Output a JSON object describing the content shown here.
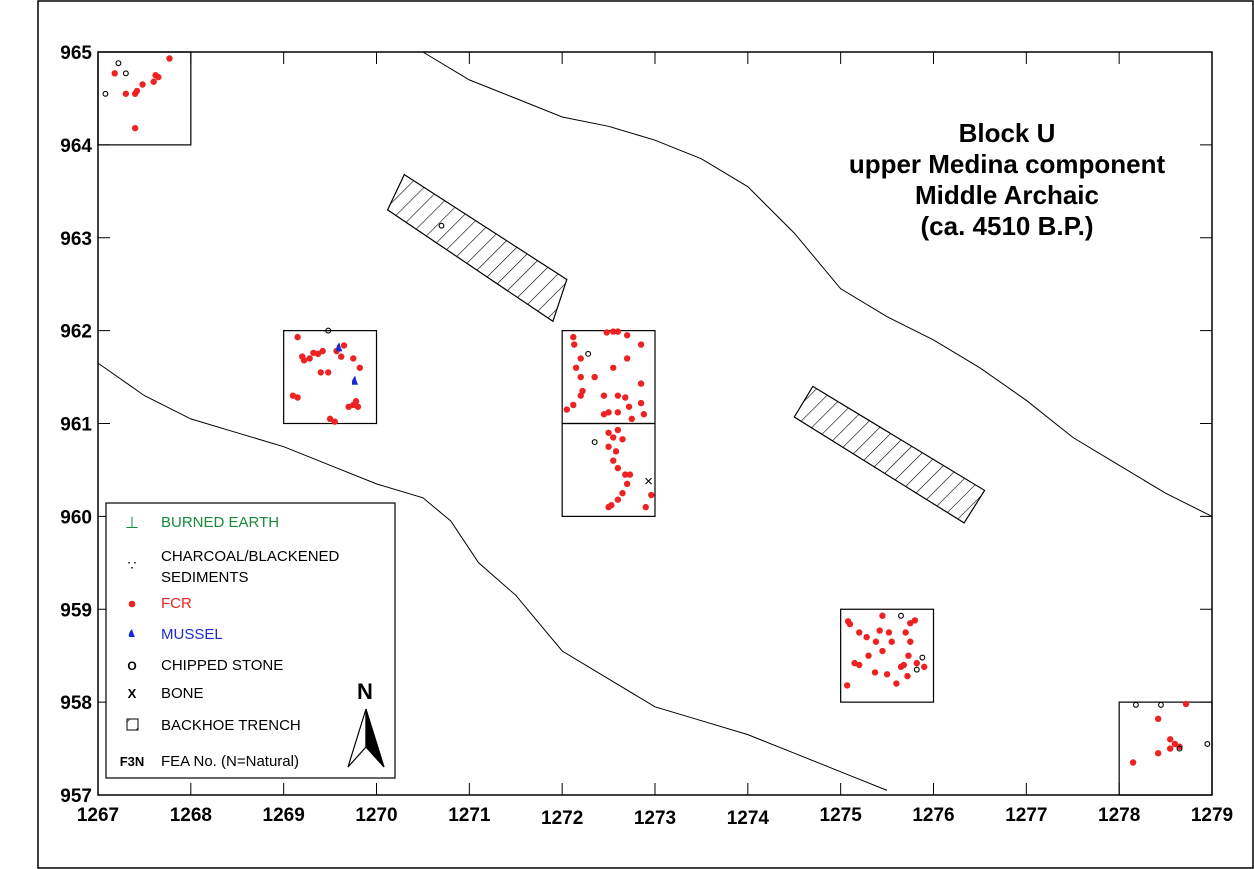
{
  "title": {
    "lines": [
      "Block U",
      "upper Medina component",
      "Middle Archaic",
      "(ca. 4510 B.P.)"
    ]
  },
  "axes": {
    "x_ticks": [
      "1267",
      "1268",
      "1269",
      "1270",
      "1271",
      "1272",
      "1273",
      "1274",
      "1275",
      "1276",
      "1277",
      "1278",
      "1279"
    ],
    "y_ticks": [
      "965",
      "964",
      "963",
      "962",
      "961",
      "960",
      "959",
      "958",
      "957"
    ],
    "x_range": [
      1267,
      1279
    ],
    "y_range": [
      957,
      965
    ]
  },
  "colors": {
    "fcr": "#ee2222",
    "mussel": "#1a2bd6",
    "burned_earth": "#1a8a3c",
    "ink": "#000000"
  },
  "legend": {
    "burned_earth": {
      "symbol": "⊥",
      "label": "BURNED EARTH"
    },
    "charcoal": {
      "symbol": "∵",
      "label_line1": "CHARCOAL/BLACKENED",
      "label_line2": "SEDIMENTS"
    },
    "fcr": {
      "label": "FCR"
    },
    "mussel": {
      "label": "MUSSEL"
    },
    "chipped_stone": {
      "symbol": "O",
      "label": "CHIPPED STONE"
    },
    "bone": {
      "symbol": "X",
      "label": "BONE"
    },
    "backhoe": {
      "label": "BACKHOE TRENCH"
    },
    "fea": {
      "symbol": "F3N",
      "label": "FEA No. (N=Natural)"
    }
  },
  "north_arrow": {
    "label": "N"
  },
  "map_data": {
    "excavation_units": [
      {
        "x0": 1267,
        "y0": 964,
        "x1": 1268,
        "y1": 965
      },
      {
        "x0": 1269,
        "y0": 961,
        "x1": 1270,
        "y1": 962
      },
      {
        "x0": 1272,
        "y0": 961,
        "x1": 1273,
        "y1": 962
      },
      {
        "x0": 1272,
        "y0": 960,
        "x1": 1273,
        "y1": 961
      },
      {
        "x0": 1275,
        "y0": 958,
        "x1": 1276,
        "y1": 959
      },
      {
        "x0": 1278,
        "y0": 957,
        "x1": 1279,
        "y1": 958
      }
    ],
    "backhoe_trenches": [
      [
        [
          1270.3,
          963.68
        ],
        [
          1272.05,
          962.55
        ],
        [
          1271.9,
          962.1
        ],
        [
          1270.12,
          963.3
        ]
      ],
      [
        [
          1274.7,
          961.4
        ],
        [
          1276.55,
          960.28
        ],
        [
          1276.33,
          959.93
        ],
        [
          1274.5,
          961.07
        ]
      ]
    ],
    "contours": [
      [
        [
          1270.5,
          965
        ],
        [
          1271,
          964.7
        ],
        [
          1271.5,
          964.5
        ],
        [
          1272,
          964.3
        ],
        [
          1272.5,
          964.2
        ],
        [
          1273,
          964.05
        ],
        [
          1273.5,
          963.85
        ],
        [
          1274,
          963.55
        ],
        [
          1274.5,
          963.05
        ],
        [
          1275,
          962.45
        ],
        [
          1275.5,
          962.15
        ],
        [
          1276,
          961.9
        ],
        [
          1276.5,
          961.6
        ],
        [
          1277,
          961.25
        ],
        [
          1277.5,
          960.85
        ],
        [
          1278,
          960.55
        ],
        [
          1278.5,
          960.25
        ],
        [
          1279,
          960.0
        ]
      ],
      [
        [
          1267,
          961.65
        ],
        [
          1267.5,
          961.3
        ],
        [
          1268,
          961.05
        ],
        [
          1268.5,
          960.9
        ],
        [
          1269,
          960.75
        ],
        [
          1269.5,
          960.55
        ],
        [
          1270,
          960.35
        ],
        [
          1270.5,
          960.2
        ],
        [
          1270.8,
          959.95
        ],
        [
          1271.1,
          959.5
        ],
        [
          1271.5,
          959.15
        ],
        [
          1272,
          958.55
        ],
        [
          1272.5,
          958.25
        ],
        [
          1273,
          957.95
        ],
        [
          1273.5,
          957.8
        ],
        [
          1274,
          957.65
        ],
        [
          1274.5,
          957.45
        ],
        [
          1275,
          957.25
        ],
        [
          1275.5,
          957.05
        ]
      ]
    ],
    "fcr": [
      [
        1267.18,
        964.77
      ],
      [
        1267.3,
        964.55
      ],
      [
        1267.4,
        964.55
      ],
      [
        1267.42,
        964.58
      ],
      [
        1267.48,
        964.65
      ],
      [
        1267.6,
        964.68
      ],
      [
        1267.62,
        964.75
      ],
      [
        1267.65,
        964.73
      ],
      [
        1267.77,
        964.93
      ],
      [
        1267.4,
        964.18
      ],
      [
        1269.15,
        961.93
      ],
      [
        1269.2,
        961.72
      ],
      [
        1269.22,
        961.68
      ],
      [
        1269.28,
        961.7
      ],
      [
        1269.32,
        961.76
      ],
      [
        1269.37,
        961.75
      ],
      [
        1269.42,
        961.78
      ],
      [
        1269.4,
        961.55
      ],
      [
        1269.48,
        961.55
      ],
      [
        1269.57,
        961.78
      ],
      [
        1269.62,
        961.72
      ],
      [
        1269.65,
        961.84
      ],
      [
        1269.75,
        961.7
      ],
      [
        1269.82,
        961.6
      ],
      [
        1269.1,
        961.3
      ],
      [
        1269.15,
        961.28
      ],
      [
        1269.5,
        961.05
      ],
      [
        1269.55,
        961.02
      ],
      [
        1269.7,
        961.18
      ],
      [
        1269.75,
        961.2
      ],
      [
        1269.78,
        961.24
      ],
      [
        1269.8,
        961.18
      ],
      [
        1272.12,
        961.93
      ],
      [
        1272.13,
        961.85
      ],
      [
        1272.2,
        961.7
      ],
      [
        1272.15,
        961.6
      ],
      [
        1272.2,
        961.5
      ],
      [
        1272.22,
        961.35
      ],
      [
        1272.2,
        961.3
      ],
      [
        1272.05,
        961.15
      ],
      [
        1272.12,
        961.2
      ],
      [
        1272.48,
        961.98
      ],
      [
        1272.55,
        961.99
      ],
      [
        1272.6,
        961.99
      ],
      [
        1272.7,
        961.95
      ],
      [
        1272.7,
        961.7
      ],
      [
        1272.85,
        961.85
      ],
      [
        1272.55,
        961.6
      ],
      [
        1272.35,
        961.5
      ],
      [
        1272.45,
        961.3
      ],
      [
        1272.85,
        961.43
      ],
      [
        1272.6,
        961.3
      ],
      [
        1272.68,
        961.28
      ],
      [
        1272.72,
        961.18
      ],
      [
        1272.6,
        961.12
      ],
      [
        1272.5,
        961.12
      ],
      [
        1272.85,
        961.22
      ],
      [
        1272.88,
        961.1
      ],
      [
        1272.75,
        961.05
      ],
      [
        1272.45,
        961.1
      ],
      [
        1272.5,
        960.9
      ],
      [
        1272.55,
        960.85
      ],
      [
        1272.6,
        960.93
      ],
      [
        1272.5,
        960.75
      ],
      [
        1272.58,
        960.7
      ],
      [
        1272.65,
        960.83
      ],
      [
        1272.55,
        960.6
      ],
      [
        1272.6,
        960.52
      ],
      [
        1272.68,
        960.45
      ],
      [
        1272.73,
        960.45
      ],
      [
        1272.7,
        960.35
      ],
      [
        1272.65,
        960.25
      ],
      [
        1272.6,
        960.18
      ],
      [
        1272.53,
        960.12
      ],
      [
        1272.5,
        960.1
      ],
      [
        1272.96,
        960.23
      ],
      [
        1272.9,
        960.1
      ],
      [
        1275.08,
        958.87
      ],
      [
        1275.1,
        958.84
      ],
      [
        1275.2,
        958.75
      ],
      [
        1275.28,
        958.7
      ],
      [
        1275.42,
        958.77
      ],
      [
        1275.52,
        958.75
      ],
      [
        1275.55,
        958.65
      ],
      [
        1275.38,
        958.65
      ],
      [
        1275.45,
        958.55
      ],
      [
        1275.3,
        958.5
      ],
      [
        1275.75,
        958.85
      ],
      [
        1275.8,
        958.88
      ],
      [
        1275.7,
        958.75
      ],
      [
        1275.75,
        958.65
      ],
      [
        1275.73,
        958.5
      ],
      [
        1275.82,
        958.42
      ],
      [
        1275.68,
        958.4
      ],
      [
        1275.65,
        958.38
      ],
      [
        1275.6,
        958.2
      ],
      [
        1275.37,
        958.32
      ],
      [
        1275.5,
        958.3
      ],
      [
        1275.72,
        958.28
      ],
      [
        1275.15,
        958.42
      ],
      [
        1275.2,
        958.4
      ],
      [
        1275.07,
        958.18
      ],
      [
        1275.45,
        958.93
      ],
      [
        1275.9,
        958.38
      ],
      [
        1278.15,
        957.35
      ],
      [
        1278.42,
        957.45
      ],
      [
        1278.55,
        957.5
      ],
      [
        1278.6,
        957.55
      ],
      [
        1278.65,
        957.52
      ],
      [
        1278.42,
        957.82
      ],
      [
        1278.72,
        957.98
      ],
      [
        1278.55,
        957.6
      ]
    ],
    "chipped_stone": [
      [
        1267.22,
        964.88
      ],
      [
        1267.3,
        964.77
      ],
      [
        1267.08,
        964.55
      ],
      [
        1269.48,
        962.0
      ],
      [
        1272.28,
        961.75
      ],
      [
        1272.35,
        960.8
      ],
      [
        1275.65,
        958.93
      ],
      [
        1275.88,
        958.48
      ],
      [
        1275.82,
        958.35
      ],
      [
        1278.18,
        957.97
      ],
      [
        1278.45,
        957.97
      ],
      [
        1278.65,
        957.5
      ],
      [
        1278.95,
        957.55
      ],
      [
        1270.7,
        963.13
      ]
    ],
    "bone": [
      [
        1272.93,
        960.38
      ]
    ],
    "mussel": [
      [
        1269.6,
        961.82
      ],
      [
        1269.77,
        961.46
      ]
    ]
  }
}
